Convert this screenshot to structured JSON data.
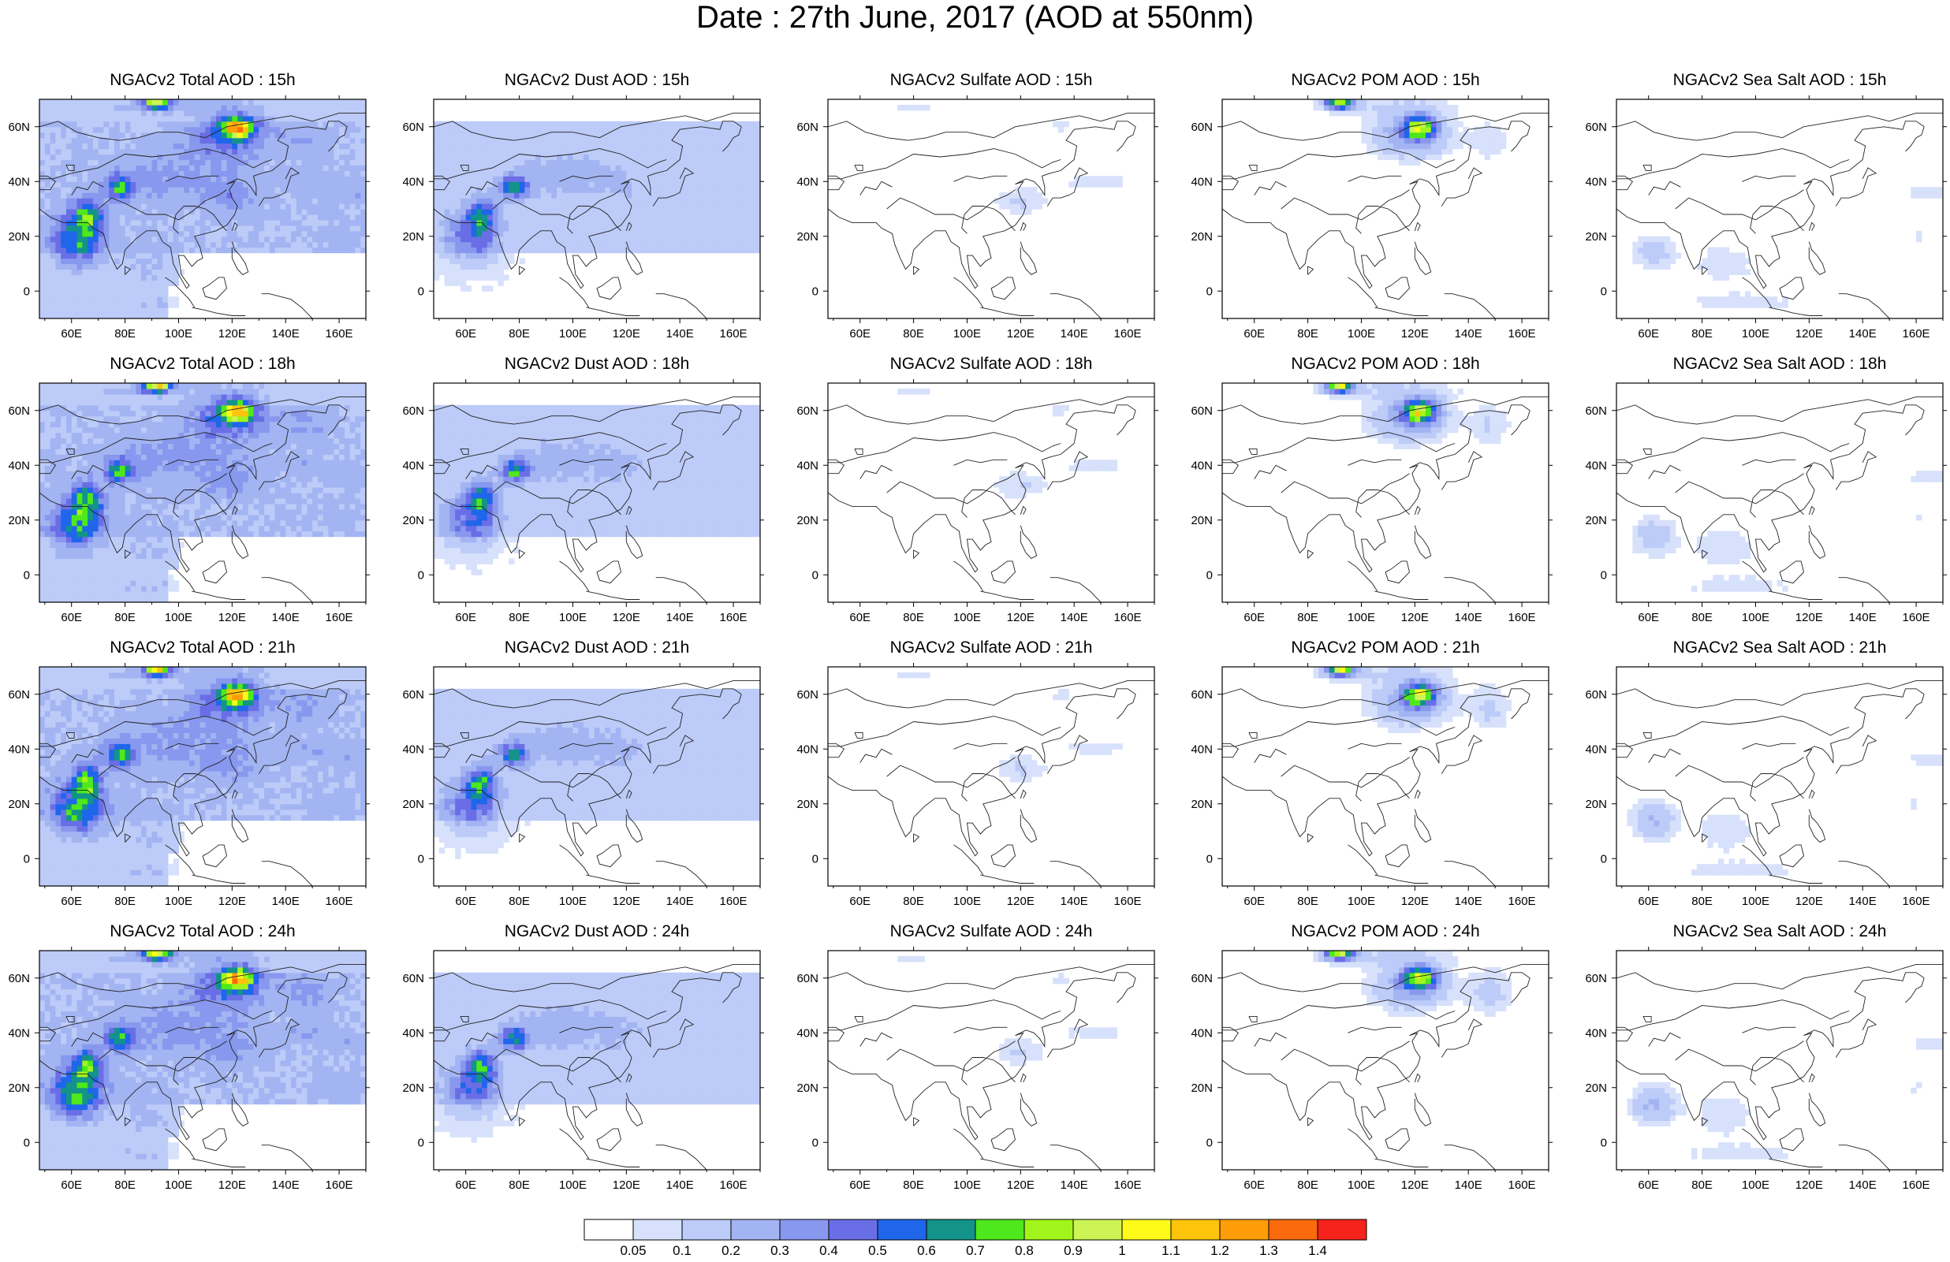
{
  "title": "Date : 27th June, 2017 (AOD at 550nm)",
  "colorbar": {
    "labels": [
      "0.05",
      "0.1",
      "0.2",
      "0.3",
      "0.4",
      "0.5",
      "0.6",
      "0.7",
      "0.8",
      "0.9",
      "1",
      "1.1",
      "1.2",
      "1.3",
      "1.4"
    ],
    "colors": [
      "#ffffff",
      "#d7e1fb",
      "#bccbf8",
      "#a3b4f2",
      "#8898ee",
      "#6a6ee6",
      "#1f66eb",
      "#139389",
      "#4ee81c",
      "#a2f51b",
      "#ccf455",
      "#fefa1a",
      "#fec30b",
      "#fe9d08",
      "#fb6a0d",
      "#f5231c"
    ]
  },
  "map": {
    "lon_ticks": [
      "60E",
      "80E",
      "100E",
      "120E",
      "140E",
      "160E"
    ],
    "lat_ticks": [
      "60N",
      "40N",
      "20N",
      "0"
    ]
  },
  "chart_data": {
    "type": "heatmap",
    "variable": "AOD at 550nm",
    "date": "27th June, 2017",
    "extent": {
      "lon": [
        48,
        170
      ],
      "lat": [
        -10,
        70
      ]
    },
    "panels": [
      {
        "title": "NGACv2 Total AOD : 15h",
        "species": "total",
        "hour": "15h"
      },
      {
        "title": "NGACv2 Dust AOD : 15h",
        "species": "dust",
        "hour": "15h"
      },
      {
        "title": "NGACv2 Sulfate AOD : 15h",
        "species": "sulfate",
        "hour": "15h"
      },
      {
        "title": "NGACv2 POM AOD : 15h",
        "species": "pom",
        "hour": "15h"
      },
      {
        "title": "NGACv2 Sea Salt AOD : 15h",
        "species": "seasalt",
        "hour": "15h"
      },
      {
        "title": "NGACv2 Total AOD : 18h",
        "species": "total",
        "hour": "18h"
      },
      {
        "title": "NGACv2 Dust AOD : 18h",
        "species": "dust",
        "hour": "18h"
      },
      {
        "title": "NGACv2 Sulfate AOD : 18h",
        "species": "sulfate",
        "hour": "18h"
      },
      {
        "title": "NGACv2 POM AOD : 18h",
        "species": "pom",
        "hour": "18h"
      },
      {
        "title": "NGACv2 Sea Salt AOD : 18h",
        "species": "seasalt",
        "hour": "18h"
      },
      {
        "title": "NGACv2 Total AOD : 21h",
        "species": "total",
        "hour": "21h"
      },
      {
        "title": "NGACv2 Dust AOD : 21h",
        "species": "dust",
        "hour": "21h"
      },
      {
        "title": "NGACv2 Sulfate AOD : 21h",
        "species": "sulfate",
        "hour": "21h"
      },
      {
        "title": "NGACv2 POM AOD : 21h",
        "species": "pom",
        "hour": "21h"
      },
      {
        "title": "NGACv2 Sea Salt AOD : 21h",
        "species": "seasalt",
        "hour": "21h"
      },
      {
        "title": "NGACv2 Total AOD : 24h",
        "species": "total",
        "hour": "24h"
      },
      {
        "title": "NGACv2 Dust AOD : 24h",
        "species": "dust",
        "hour": "24h"
      },
      {
        "title": "NGACv2 Sulfate AOD : 24h",
        "species": "sulfate",
        "hour": "24h"
      },
      {
        "title": "NGACv2 POM AOD : 24h",
        "species": "pom",
        "hour": "24h"
      },
      {
        "title": "NGACv2 Sea Salt  AOD : 24h",
        "species": "seasalt",
        "hour": "24h"
      }
    ]
  }
}
